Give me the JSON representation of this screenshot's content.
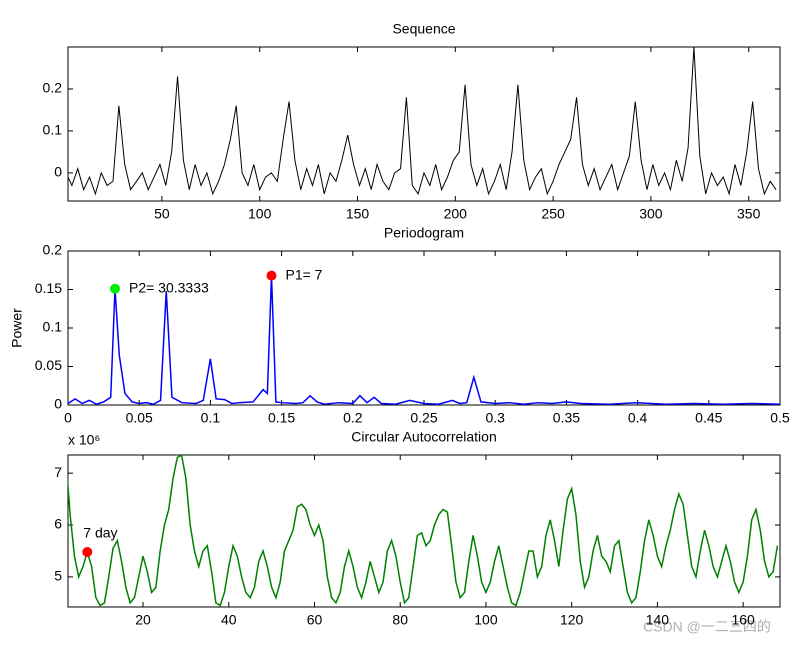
{
  "chart_data": [
    {
      "type": "line",
      "title": "Sequence",
      "color": "#000000",
      "xlim": [
        2,
        366
      ],
      "ylim": [
        -0.067,
        0.3
      ],
      "xticks": [
        50,
        100,
        150,
        200,
        250,
        300,
        350
      ],
      "yticks": [
        0,
        0.1,
        0.2
      ],
      "x": [
        1,
        4,
        7,
        10,
        13,
        16,
        19,
        22,
        25,
        28,
        31,
        34,
        37,
        40,
        43,
        46,
        49,
        52,
        55,
        58,
        61,
        64,
        67,
        70,
        73,
        76,
        79,
        82,
        85,
        88,
        91,
        94,
        97,
        100,
        103,
        106,
        109,
        112,
        115,
        118,
        121,
        124,
        127,
        130,
        133,
        136,
        139,
        142,
        145,
        148,
        151,
        154,
        157,
        160,
        163,
        166,
        169,
        172,
        175,
        178,
        181,
        184,
        187,
        190,
        193,
        196,
        199,
        202,
        205,
        208,
        211,
        214,
        217,
        220,
        223,
        226,
        229,
        232,
        235,
        238,
        241,
        244,
        247,
        250,
        253,
        256,
        259,
        262,
        265,
        268,
        271,
        274,
        277,
        280,
        283,
        286,
        289,
        292,
        295,
        298,
        301,
        304,
        307,
        310,
        313,
        316,
        319,
        322,
        325,
        328,
        331,
        334,
        337,
        340,
        343,
        346,
        349,
        352,
        355,
        358,
        361,
        364
      ],
      "values": [
        0.0,
        -0.03,
        0.01,
        -0.04,
        -0.01,
        -0.05,
        0.0,
        -0.03,
        -0.02,
        0.16,
        0.02,
        -0.04,
        -0.02,
        0.0,
        -0.04,
        -0.01,
        0.02,
        -0.03,
        0.05,
        0.23,
        0.03,
        -0.04,
        0.02,
        -0.03,
        0.0,
        -0.05,
        -0.02,
        0.02,
        0.08,
        0.16,
        0.0,
        -0.03,
        0.02,
        -0.04,
        -0.01,
        0.0,
        -0.02,
        0.08,
        0.17,
        0.03,
        -0.04,
        0.01,
        -0.03,
        0.02,
        -0.05,
        0.0,
        -0.02,
        0.03,
        0.09,
        0.02,
        -0.03,
        0.01,
        -0.04,
        0.02,
        -0.02,
        -0.04,
        0.0,
        0.01,
        0.18,
        -0.03,
        -0.05,
        0.0,
        -0.03,
        0.02,
        -0.04,
        -0.01,
        0.03,
        0.05,
        0.21,
        0.02,
        -0.03,
        0.01,
        -0.05,
        -0.02,
        0.02,
        -0.04,
        0.05,
        0.21,
        0.03,
        -0.04,
        -0.01,
        0.01,
        -0.05,
        -0.02,
        0.02,
        0.05,
        0.08,
        0.18,
        0.02,
        -0.03,
        0.01,
        -0.04,
        -0.01,
        0.02,
        -0.04,
        0.0,
        0.04,
        0.17,
        0.03,
        -0.04,
        0.02,
        -0.03,
        0.0,
        -0.04,
        0.03,
        -0.02,
        0.06,
        0.3,
        0.04,
        -0.05,
        0.0,
        -0.03,
        -0.01,
        -0.05,
        0.02,
        -0.03,
        0.05,
        0.17,
        0.01,
        -0.05,
        -0.02,
        -0.04
      ]
    },
    {
      "type": "line",
      "title": "Periodogram",
      "ylabel": "Power",
      "color": "#0000ff",
      "xlim": [
        0,
        0.5
      ],
      "ylim": [
        0,
        0.2
      ],
      "xticks": [
        0,
        0.05,
        0.1,
        0.15,
        0.2,
        0.25,
        0.3,
        0.35,
        0.4,
        0.45,
        0.5
      ],
      "yticks": [
        0,
        0.05,
        0.1,
        0.15,
        0.2
      ],
      "x": [
        0,
        0.005,
        0.01,
        0.015,
        0.02,
        0.025,
        0.03,
        0.033,
        0.036,
        0.04,
        0.045,
        0.05,
        0.055,
        0.06,
        0.065,
        0.069,
        0.073,
        0.08,
        0.09,
        0.095,
        0.1,
        0.104,
        0.11,
        0.115,
        0.12,
        0.13,
        0.137,
        0.14,
        0.1429,
        0.146,
        0.15,
        0.16,
        0.165,
        0.17,
        0.175,
        0.18,
        0.19,
        0.2,
        0.205,
        0.21,
        0.215,
        0.22,
        0.23,
        0.24,
        0.25,
        0.26,
        0.27,
        0.275,
        0.28,
        0.285,
        0.29,
        0.3,
        0.31,
        0.32,
        0.33,
        0.34,
        0.35,
        0.36,
        0.38,
        0.4,
        0.42,
        0.44,
        0.46,
        0.48,
        0.5
      ],
      "values": [
        0.002,
        0.008,
        0.002,
        0.006,
        0.001,
        0.004,
        0.01,
        0.151,
        0.065,
        0.015,
        0.004,
        0.002,
        0.003,
        0.001,
        0.006,
        0.148,
        0.01,
        0.003,
        0.002,
        0.006,
        0.06,
        0.008,
        0.007,
        0.002,
        0.003,
        0.004,
        0.02,
        0.015,
        0.168,
        0.004,
        0.003,
        0.002,
        0.003,
        0.012,
        0.004,
        0.001,
        0.003,
        0.002,
        0.012,
        0.003,
        0.01,
        0.002,
        0.001,
        0.006,
        0.002,
        0.001,
        0.006,
        0.002,
        0.003,
        0.036,
        0.004,
        0.002,
        0.003,
        0.001,
        0.003,
        0.002,
        0.004,
        0.002,
        0.001,
        0.003,
        0.001,
        0.002,
        0.001,
        0.002,
        0.001
      ],
      "annotations": [
        {
          "text": "P2= 30.3333",
          "x": 0.033,
          "y": 0.151,
          "color": "#00ee00"
        },
        {
          "text": "P1= 7",
          "x": 0.1429,
          "y": 0.168,
          "color": "#ff0000"
        }
      ]
    },
    {
      "type": "line",
      "title": "Circular Autocorrelation",
      "y_multiplier": "x 10⁶",
      "color": "#008000",
      "xlim": [
        2.5,
        168.6
      ],
      "ylim": [
        4.42,
        7.35
      ],
      "xticks": [
        20,
        40,
        60,
        80,
        100,
        120,
        140,
        160
      ],
      "yticks": [
        5,
        6,
        7
      ],
      "x": [
        2,
        3,
        4,
        5,
        6,
        7,
        8,
        9,
        10,
        11,
        12,
        13,
        14,
        15,
        16,
        17,
        18,
        19,
        20,
        21,
        22,
        23,
        24,
        25,
        26,
        27,
        28,
        29,
        30,
        31,
        32,
        33,
        34,
        35,
        36,
        37,
        38,
        39,
        40,
        41,
        42,
        43,
        44,
        45,
        46,
        47,
        48,
        49,
        50,
        51,
        52,
        53,
        54,
        55,
        56,
        57,
        58,
        59,
        60,
        61,
        62,
        63,
        64,
        65,
        66,
        67,
        68,
        69,
        70,
        71,
        72,
        73,
        74,
        75,
        76,
        77,
        78,
        79,
        80,
        81,
        82,
        83,
        84,
        85,
        86,
        87,
        88,
        89,
        90,
        91,
        92,
        93,
        94,
        95,
        96,
        97,
        98,
        99,
        100,
        101,
        102,
        103,
        104,
        105,
        106,
        107,
        108,
        109,
        110,
        111,
        112,
        113,
        114,
        115,
        116,
        117,
        118,
        119,
        120,
        121,
        122,
        123,
        124,
        125,
        126,
        127,
        128,
        129,
        130,
        131,
        132,
        133,
        134,
        135,
        136,
        137,
        138,
        139,
        140,
        141,
        142,
        143,
        144,
        145,
        146,
        147,
        148,
        149,
        150,
        151,
        152,
        153,
        154,
        155,
        156,
        157,
        158,
        159,
        160,
        161,
        162,
        163,
        164,
        165,
        166,
        167,
        168
      ],
      "values": [
        7.3,
        6.2,
        5.4,
        5.0,
        5.2,
        5.48,
        5.2,
        4.6,
        4.45,
        4.5,
        5.0,
        5.55,
        5.7,
        5.3,
        4.8,
        4.5,
        4.6,
        5.0,
        5.4,
        5.1,
        4.7,
        4.8,
        5.5,
        6.0,
        6.3,
        6.9,
        7.3,
        7.35,
        6.9,
        6.0,
        5.5,
        5.2,
        5.5,
        5.6,
        5.1,
        4.5,
        4.45,
        4.7,
        5.2,
        5.6,
        5.4,
        5.0,
        4.7,
        4.6,
        4.8,
        5.3,
        5.5,
        5.2,
        4.8,
        4.6,
        4.9,
        5.5,
        5.7,
        5.9,
        6.35,
        6.4,
        6.3,
        6.0,
        5.8,
        6.0,
        5.7,
        5.0,
        4.6,
        4.5,
        4.7,
        5.2,
        5.5,
        5.2,
        4.8,
        4.6,
        4.9,
        5.3,
        5.0,
        4.7,
        4.9,
        5.5,
        5.7,
        5.4,
        4.9,
        4.5,
        4.6,
        5.2,
        5.8,
        5.85,
        5.6,
        5.7,
        6.0,
        6.2,
        6.3,
        6.25,
        5.6,
        4.9,
        4.6,
        4.7,
        5.3,
        5.8,
        5.4,
        4.9,
        4.7,
        4.9,
        5.3,
        5.6,
        5.2,
        4.8,
        4.5,
        4.45,
        4.7,
        5.1,
        5.5,
        5.5,
        5.0,
        5.2,
        5.8,
        6.1,
        5.7,
        5.2,
        5.9,
        6.5,
        6.7,
        6.2,
        5.3,
        4.8,
        5.0,
        5.5,
        5.8,
        5.4,
        5.3,
        5.1,
        5.6,
        5.7,
        5.2,
        4.7,
        4.5,
        4.6,
        5.1,
        5.7,
        6.1,
        5.8,
        5.4,
        5.2,
        5.6,
        5.9,
        6.3,
        6.6,
        6.4,
        5.8,
        5.2,
        5.0,
        5.5,
        5.9,
        5.6,
        5.2,
        5.0,
        5.3,
        5.6,
        5.3,
        4.9,
        4.7,
        4.9,
        5.4,
        6.1,
        6.3,
        5.9,
        5.3,
        5.0,
        5.1,
        5.6
      ],
      "annotations": [
        {
          "text": "7 day",
          "x": 7,
          "y": 5.48,
          "color": "#ff0000"
        }
      ]
    }
  ],
  "watermark": "CSDN @一二三四的"
}
